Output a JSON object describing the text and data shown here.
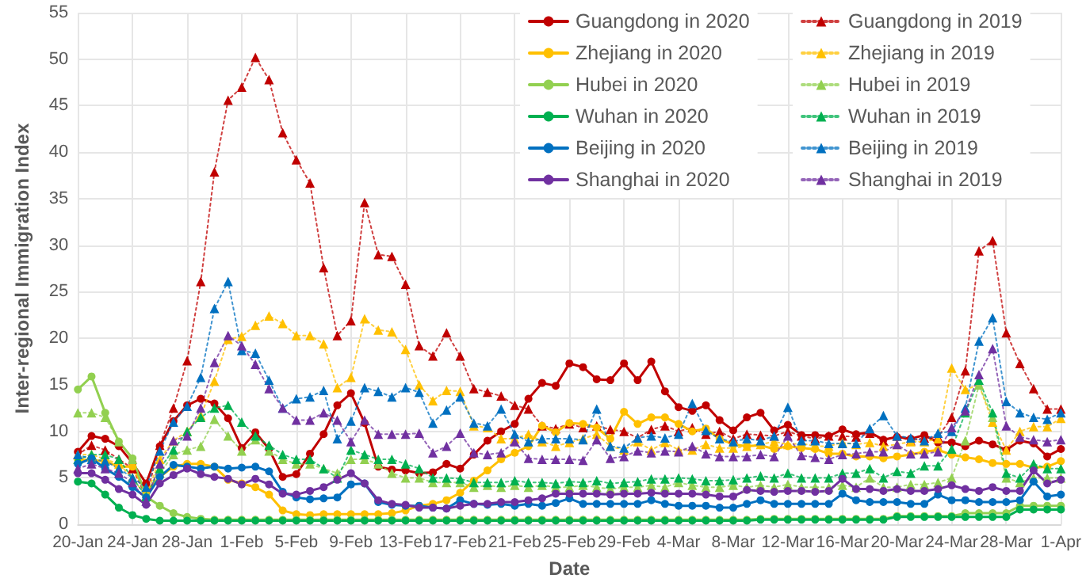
{
  "chart_data": {
    "type": "line",
    "xlabel": "Date",
    "ylabel": "Inter-regional Immigration Index",
    "categories": [
      "20-Jan",
      null,
      null,
      null,
      "24-Jan",
      null,
      null,
      null,
      "28-Jan",
      null,
      null,
      null,
      "1-Feb",
      null,
      null,
      null,
      "5-Feb",
      null,
      null,
      null,
      "9-Feb",
      null,
      null,
      null,
      "13-Feb",
      null,
      null,
      null,
      "17-Feb",
      null,
      null,
      null,
      "21-Feb",
      null,
      null,
      null,
      "25-Feb",
      null,
      null,
      null,
      "29-Feb",
      null,
      null,
      null,
      "4-Mar",
      null,
      null,
      null,
      "8-Mar",
      null,
      null,
      null,
      "12-Mar",
      null,
      null,
      null,
      "16-Mar",
      null,
      null,
      null,
      "20-Mar",
      null,
      null,
      null,
      "24-Mar",
      null,
      null,
      null,
      "28-Mar",
      null,
      null,
      null,
      "1-Apr"
    ],
    "ylim": [
      0,
      55
    ],
    "yticks": [
      0,
      5,
      10,
      15,
      20,
      25,
      30,
      35,
      40,
      45,
      50,
      55
    ],
    "grid": true,
    "legend": "top right",
    "series": [
      {
        "name": "Guangdong in 2020",
        "color": "#c00000",
        "marker": "circle",
        "line_style": "solid",
        "values": [
          7.8,
          9.5,
          9.2,
          8.4,
          6.6,
          4.4,
          8.4,
          11.1,
          12.8,
          13.5,
          13.0,
          11.4,
          8.2,
          9.9,
          8.1,
          5.1,
          5.4,
          7.6,
          9.7,
          12.8,
          14.1,
          10.9,
          6.2,
          5.9,
          5.8,
          5.5,
          5.6,
          6.5,
          6.0,
          7.5,
          9.0,
          10.0,
          10.8,
          13.5,
          15.2,
          14.9,
          17.3,
          16.9,
          15.6,
          15.5,
          17.3,
          15.5,
          17.5,
          14.3,
          12.6,
          12.2,
          12.8,
          11.2,
          10.1,
          11.5,
          12.0,
          10.1,
          10.7,
          9.6,
          9.6,
          9.5,
          10.2,
          9.7,
          9.9,
          9.1,
          9.4,
          9.2,
          9.6,
          8.8,
          8.8,
          8.4,
          9.0,
          8.6,
          8.0,
          9.0,
          8.7,
          7.3,
          8.1
        ]
      },
      {
        "name": "Guangdong in 2019",
        "color": "#c00000",
        "marker": "triangle",
        "line_style": "dotted",
        "values": [
          7.5,
          8.5,
          8.0,
          7.0,
          6.0,
          3.0,
          8.5,
          12.5,
          17.6,
          26.1,
          37.9,
          45.6,
          47.0,
          50.2,
          47.8,
          42.1,
          39.2,
          36.7,
          27.6,
          20.3,
          21.9,
          34.6,
          29.0,
          28.8,
          25.8,
          19.2,
          18.1,
          20.6,
          18.1,
          14.6,
          14.2,
          13.8,
          12.8,
          12.4,
          10.6,
          10.3,
          10.8,
          10.4,
          10.6,
          10.2,
          10.0,
          9.3,
          10.2,
          10.6,
          10.0,
          10.4,
          9.7,
          10.0,
          9.2,
          9.7,
          9.6,
          9.5,
          10.0,
          9.5,
          9.2,
          9.5,
          9.5,
          9.4,
          9.8,
          9.0,
          9.5,
          9.0,
          9.3,
          9.4,
          11.5,
          16.5,
          29.4,
          30.5,
          20.6,
          17.3,
          14.6,
          12.4,
          12.4
        ]
      },
      {
        "name": "Zhejiang in 2020",
        "color": "#ffc000",
        "marker": "circle",
        "line_style": "solid",
        "values": [
          7.0,
          6.9,
          6.8,
          6.2,
          6.2,
          3.5,
          5.1,
          6.2,
          6.5,
          6.5,
          6.2,
          4.8,
          4.4,
          4.0,
          3.2,
          1.5,
          1.1,
          1.0,
          1.1,
          1.1,
          1.1,
          1.1,
          1.1,
          1.2,
          1.5,
          2.0,
          2.2,
          2.6,
          3.4,
          4.7,
          5.8,
          7.0,
          7.7,
          8.4,
          10.6,
          9.9,
          10.9,
          10.8,
          10.4,
          9.2,
          12.1,
          10.8,
          11.5,
          11.5,
          10.8,
          10.0,
          10.3,
          9.2,
          8.6,
          8.4,
          8.5,
          8.1,
          8.4,
          8.2,
          8.1,
          7.6,
          7.6,
          7.3,
          7.3,
          7.1,
          7.3,
          7.5,
          7.8,
          8.0,
          7.5,
          7.2,
          7.0,
          6.6,
          6.5,
          6.5,
          6.1,
          6.2,
          6.8
        ]
      },
      {
        "name": "Zhejiang in 2019",
        "color": "#ffc000",
        "marker": "triangle",
        "line_style": "dotted",
        "values": [
          7.5,
          7.5,
          7.0,
          6.5,
          5.0,
          3.0,
          7.0,
          9.0,
          10.0,
          11.7,
          15.4,
          19.9,
          20.2,
          21.4,
          22.4,
          21.6,
          20.3,
          20.3,
          19.4,
          14.7,
          15.8,
          22.1,
          20.9,
          20.7,
          18.8,
          15.0,
          13.3,
          14.4,
          14.3,
          10.6,
          10.4,
          9.2,
          9.2,
          9.7,
          8.9,
          8.4,
          8.8,
          9.2,
          9.7,
          8.4,
          8.0,
          8.9,
          8.0,
          8.8,
          8.0,
          8.0,
          8.6,
          8.2,
          8.2,
          8.4,
          8.6,
          8.9,
          8.6,
          8.7,
          8.4,
          8.4,
          8.8,
          8.6,
          8.8,
          8.4,
          8.6,
          8.9,
          8.9,
          9.2,
          16.8,
          14.5,
          15.0,
          11.0,
          8.0,
          10.0,
          10.5,
          10.5,
          11.4
        ]
      },
      {
        "name": "Hubei in 2020",
        "color": "#92d050",
        "marker": "circle",
        "line_style": "solid",
        "values": [
          14.5,
          15.9,
          12.0,
          8.9,
          7.1,
          3.0,
          2.0,
          1.2,
          0.8,
          0.6,
          0.5,
          0.5,
          0.5,
          0.5,
          0.5,
          0.5,
          0.5,
          0.5,
          0.5,
          0.5,
          0.5,
          0.5,
          0.5,
          0.5,
          0.5,
          0.5,
          0.5,
          0.5,
          0.5,
          0.5,
          0.5,
          0.5,
          0.5,
          0.5,
          0.5,
          0.5,
          0.5,
          0.5,
          0.5,
          0.5,
          0.5,
          0.5,
          0.5,
          0.5,
          0.5,
          0.5,
          0.5,
          0.5,
          0.5,
          0.5,
          0.6,
          0.6,
          0.6,
          0.6,
          0.6,
          0.6,
          0.6,
          0.6,
          0.6,
          0.6,
          0.9,
          0.9,
          0.9,
          0.9,
          0.9,
          1.2,
          1.2,
          1.2,
          1.2,
          2.0,
          2.0,
          2.0,
          2.0
        ]
      },
      {
        "name": "Hubei in 2019",
        "color": "#92d050",
        "marker": "triangle",
        "line_style": "dotted",
        "values": [
          12.0,
          12.0,
          11.5,
          8.9,
          7.0,
          3.0,
          5.5,
          7.5,
          8.0,
          8.4,
          11.3,
          9.5,
          7.9,
          9.1,
          7.9,
          7.0,
          6.5,
          6.5,
          6.0,
          5.5,
          7.0,
          7.0,
          6.5,
          5.5,
          5.0,
          5.0,
          4.5,
          4.5,
          4.5,
          4.0,
          4.2,
          4.0,
          4.2,
          4.0,
          4.2,
          4.0,
          4.0,
          4.2,
          4.0,
          3.8,
          4.0,
          4.0,
          4.2,
          4.0,
          4.5,
          4.2,
          4.0,
          4.0,
          4.2,
          4.0,
          4.2,
          4.0,
          4.3,
          4.0,
          4.0,
          4.0,
          4.2,
          4.0,
          5.0,
          4.0,
          4.0,
          4.3,
          4.3,
          4.5,
          5.0,
          9.0,
          15.0,
          11.5,
          5.0,
          4.5,
          5.0,
          5.0,
          5.0
        ]
      },
      {
        "name": "Wuhan in 2020",
        "color": "#00b050",
        "marker": "circle",
        "line_style": "solid",
        "values": [
          4.6,
          4.4,
          3.2,
          1.8,
          1.0,
          0.6,
          0.4,
          0.4,
          0.4,
          0.4,
          0.4,
          0.4,
          0.4,
          0.4,
          0.4,
          0.4,
          0.4,
          0.4,
          0.4,
          0.4,
          0.4,
          0.4,
          0.4,
          0.4,
          0.4,
          0.4,
          0.4,
          0.4,
          0.4,
          0.4,
          0.4,
          0.4,
          0.4,
          0.4,
          0.4,
          0.4,
          0.4,
          0.4,
          0.4,
          0.4,
          0.4,
          0.4,
          0.4,
          0.4,
          0.4,
          0.4,
          0.4,
          0.4,
          0.4,
          0.4,
          0.5,
          0.5,
          0.5,
          0.5,
          0.5,
          0.5,
          0.5,
          0.5,
          0.5,
          0.5,
          0.8,
          0.8,
          0.8,
          0.8,
          0.8,
          0.8,
          0.8,
          0.8,
          0.8,
          1.6,
          1.6,
          1.6,
          1.6
        ]
      },
      {
        "name": "Wuhan in 2019",
        "color": "#00b050",
        "marker": "triangle",
        "line_style": "dotted",
        "values": [
          7.0,
          7.5,
          7.5,
          7.0,
          5.0,
          3.0,
          6.0,
          8.0,
          10.0,
          11.5,
          12.5,
          12.8,
          11.0,
          9.5,
          8.5,
          7.5,
          7.0,
          7.0,
          6.0,
          5.0,
          8.0,
          7.5,
          7.0,
          7.0,
          6.5,
          6.0,
          5.0,
          5.0,
          4.9,
          4.5,
          4.5,
          4.5,
          4.7,
          4.5,
          4.5,
          4.4,
          4.6,
          4.5,
          4.7,
          4.4,
          4.5,
          4.6,
          4.9,
          4.9,
          5.0,
          4.9,
          4.7,
          4.7,
          4.8,
          5.0,
          5.2,
          5.0,
          5.5,
          5.0,
          5.0,
          5.0,
          5.5,
          5.5,
          6.0,
          5.0,
          5.7,
          5.5,
          6.3,
          6.3,
          8.1,
          12.0,
          15.5,
          12.0,
          5.5,
          5.0,
          6.5,
          6.0,
          6.0
        ]
      },
      {
        "name": "Beijing in 2020",
        "color": "#0070c0",
        "marker": "circle",
        "line_style": "solid",
        "values": [
          6.5,
          7.1,
          6.0,
          5.1,
          4.0,
          2.9,
          5.1,
          6.4,
          6.2,
          6.0,
          6.2,
          6.0,
          6.1,
          6.2,
          5.7,
          3.5,
          2.9,
          2.7,
          2.8,
          2.9,
          4.3,
          4.4,
          2.4,
          2.1,
          2.0,
          2.0,
          1.8,
          1.7,
          2.6,
          2.2,
          2.1,
          2.2,
          2.0,
          2.2,
          2.0,
          2.3,
          2.8,
          2.2,
          2.2,
          2.2,
          2.2,
          2.2,
          2.6,
          2.2,
          2.0,
          2.0,
          2.0,
          1.8,
          1.8,
          2.2,
          2.6,
          2.2,
          2.2,
          2.2,
          2.2,
          2.2,
          3.3,
          2.6,
          2.4,
          2.4,
          2.4,
          2.2,
          2.2,
          3.2,
          2.6,
          2.6,
          2.4,
          2.4,
          2.4,
          2.6,
          4.6,
          3.0,
          3.2
        ]
      },
      {
        "name": "Beijing in 2019",
        "color": "#0070c0",
        "marker": "triangle",
        "line_style": "dotted",
        "values": [
          7.5,
          7.0,
          6.8,
          6.0,
          5.0,
          4.0,
          7.9,
          11.0,
          12.7,
          15.8,
          23.2,
          26.1,
          18.7,
          18.4,
          15.5,
          12.5,
          13.5,
          13.7,
          14.4,
          9.2,
          11.1,
          14.7,
          14.3,
          13.7,
          14.7,
          14.2,
          10.9,
          12.3,
          13.7,
          10.9,
          10.6,
          12.4,
          9.7,
          8.9,
          9.2,
          9.2,
          9.2,
          9.1,
          12.4,
          8.4,
          8.2,
          9.3,
          9.5,
          9.3,
          9.7,
          13.0,
          10.1,
          9.2,
          8.9,
          9.2,
          9.0,
          9.5,
          12.6,
          9.0,
          9.0,
          8.7,
          8.7,
          8.7,
          10.3,
          11.7,
          9.5,
          9.3,
          9.0,
          9.8,
          10.0,
          12.5,
          19.7,
          22.2,
          13.2,
          12.0,
          11.5,
          11.3,
          12.0
        ]
      },
      {
        "name": "Shanghai in 2020",
        "color": "#7030a0",
        "marker": "circle",
        "line_style": "solid",
        "values": [
          5.5,
          5.5,
          4.8,
          3.8,
          3.2,
          2.1,
          4.4,
          5.3,
          6.0,
          5.4,
          5.1,
          4.9,
          4.3,
          4.9,
          4.3,
          3.3,
          3.2,
          3.6,
          4.0,
          4.8,
          5.5,
          4.4,
          2.6,
          2.2,
          2.1,
          1.8,
          1.8,
          1.7,
          2.0,
          2.2,
          2.2,
          2.4,
          2.4,
          2.6,
          2.8,
          3.3,
          3.3,
          3.3,
          3.3,
          3.2,
          3.3,
          3.3,
          3.4,
          3.3,
          3.3,
          3.3,
          3.2,
          3.0,
          3.0,
          3.7,
          3.6,
          3.5,
          3.6,
          3.6,
          3.5,
          3.6,
          4.9,
          3.8,
          3.8,
          3.6,
          3.8,
          3.6,
          3.6,
          3.8,
          4.2,
          3.8,
          3.6,
          4.0,
          3.6,
          3.6,
          5.8,
          4.4,
          4.8
        ]
      },
      {
        "name": "Shanghai in 2019",
        "color": "#7030a0",
        "marker": "triangle",
        "line_style": "dotted",
        "values": [
          6.0,
          6.5,
          6.0,
          5.5,
          4.5,
          2.5,
          6.5,
          9.0,
          9.5,
          12.5,
          17.4,
          20.3,
          19.2,
          17.2,
          14.6,
          12.5,
          11.2,
          11.2,
          12.0,
          11.2,
          8.9,
          11.2,
          9.7,
          9.7,
          9.7,
          9.8,
          7.7,
          8.4,
          9.8,
          7.7,
          7.5,
          7.7,
          8.9,
          7.1,
          7.0,
          7.0,
          7.0,
          6.9,
          9.1,
          7.1,
          7.3,
          7.9,
          7.7,
          7.9,
          7.8,
          8.4,
          7.6,
          7.3,
          7.3,
          7.3,
          7.5,
          7.3,
          9.5,
          7.4,
          7.2,
          7.0,
          7.5,
          7.6,
          7.8,
          7.8,
          8.6,
          7.6,
          7.6,
          7.8,
          10.4,
          12.2,
          16.1,
          18.9,
          10.6,
          9.4,
          9.1,
          8.9,
          9.1
        ]
      }
    ]
  }
}
